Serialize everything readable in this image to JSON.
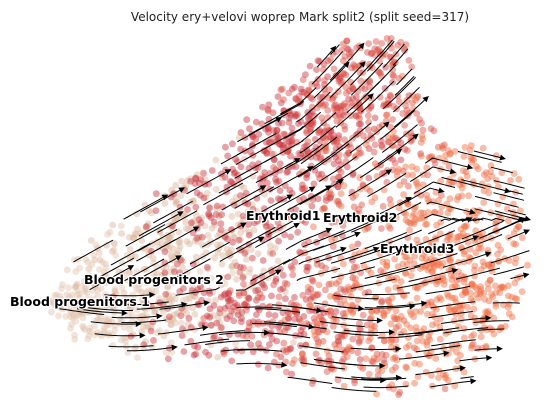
{
  "title": "Velocity ery+velovi woprep Mark split2 (split seed=317)",
  "chart_data": {
    "type": "scatter",
    "subtype": "velocity-stream-embedding",
    "title": "Velocity ery+velovi woprep Mark split2 (split seed=317)",
    "xlabel": "",
    "ylabel": "",
    "axes_visible": false,
    "grid": false,
    "legend": "on data",
    "series": [
      {
        "name": "Blood progenitors 1",
        "color": "#e2c3ad"
      },
      {
        "name": "Blood progenitors 2",
        "color": "#dcb49a"
      },
      {
        "name": "Erythroid1",
        "color": "#c9303a"
      },
      {
        "name": "Erythroid2",
        "color": "#dc4c40"
      },
      {
        "name": "Erythroid3",
        "color": "#f06a3e"
      }
    ],
    "labels": [
      "Blood progenitors 1",
      "Blood progenitors 2",
      "Erythroid1",
      "Erythroid2",
      "Erythroid3"
    ],
    "stream_color": "#000000"
  }
}
